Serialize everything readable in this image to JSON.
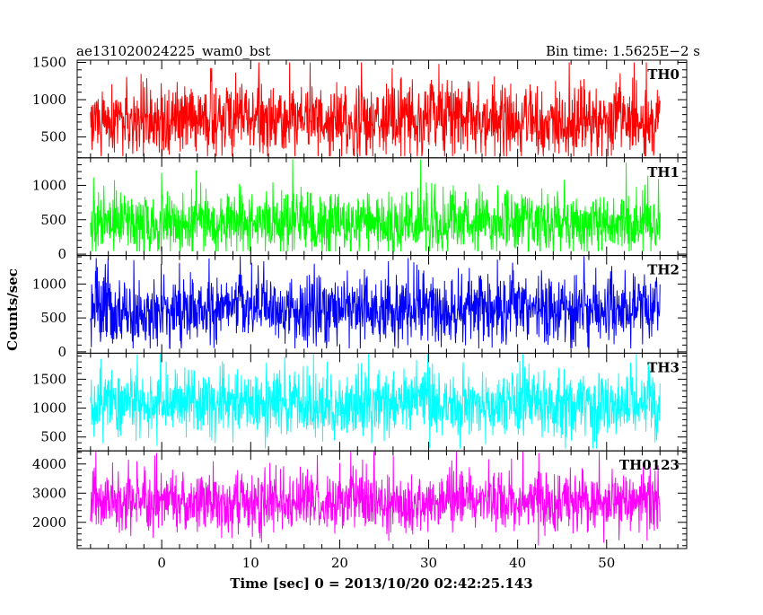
{
  "header": {
    "title": "ae131020024225_wam0_bst",
    "bin_time": "Bin time: 1.5625E−2 s"
  },
  "axes": {
    "xlabel": "Time [sec] 0 = 2013/10/20 02:42:25.143",
    "ylabel": "Counts/sec"
  },
  "chart_data": {
    "type": "line",
    "title": "ae131020024225_wam0_bst",
    "xlabel": "Time [sec] 0 = 2013/10/20 02:42:25.143",
    "ylabel": "Counts/sec",
    "x_range": [
      -8,
      56
    ],
    "xlim": [
      -9.5,
      59
    ],
    "x_ticks": [
      0,
      10,
      20,
      30,
      40,
      50
    ],
    "bin_time_s": 0.015625,
    "panels": [
      {
        "name": "TH0",
        "color": "#ff0000",
        "ylim": [
          220,
          1530
        ],
        "yticks": [
          500,
          1000,
          1500
        ],
        "base_mean": 720,
        "noise_sd": 240,
        "spike_prob": 0.02,
        "spike_max": 760,
        "min_clip": 240,
        "max_clip": 1500
      },
      {
        "name": "TH1",
        "color": "#00ff00",
        "ylim": [
          -20,
          1400
        ],
        "yticks": [
          0,
          500,
          1000
        ],
        "base_mean": 450,
        "noise_sd": 230,
        "spike_prob": 0.02,
        "spike_max": 800,
        "min_clip": 40,
        "max_clip": 1380
      },
      {
        "name": "TH2",
        "color": "#0000ff",
        "ylim": [
          -20,
          1420
        ],
        "yticks": [
          0,
          500,
          1000
        ],
        "base_mean": 620,
        "noise_sd": 260,
        "spike_prob": 0.02,
        "spike_max": 760,
        "min_clip": 50,
        "max_clip": 1410
      },
      {
        "name": "TH3",
        "color": "#00ffff",
        "ylim": [
          260,
          1950
        ],
        "yticks": [
          500,
          1000,
          1500
        ],
        "base_mean": 1080,
        "noise_sd": 300,
        "spike_prob": 0.02,
        "spike_max": 820,
        "min_clip": 300,
        "max_clip": 1940
      },
      {
        "name": "TH0123",
        "color": "#ff00ff",
        "ylim": [
          1100,
          4450
        ],
        "yticks": [
          2000,
          3000,
          4000
        ],
        "base_mean": 2700,
        "noise_sd": 520,
        "spike_prob": 0.02,
        "spike_max": 1500,
        "min_clip": 1200,
        "max_clip": 4420
      }
    ],
    "grid": false,
    "legend": "none"
  }
}
